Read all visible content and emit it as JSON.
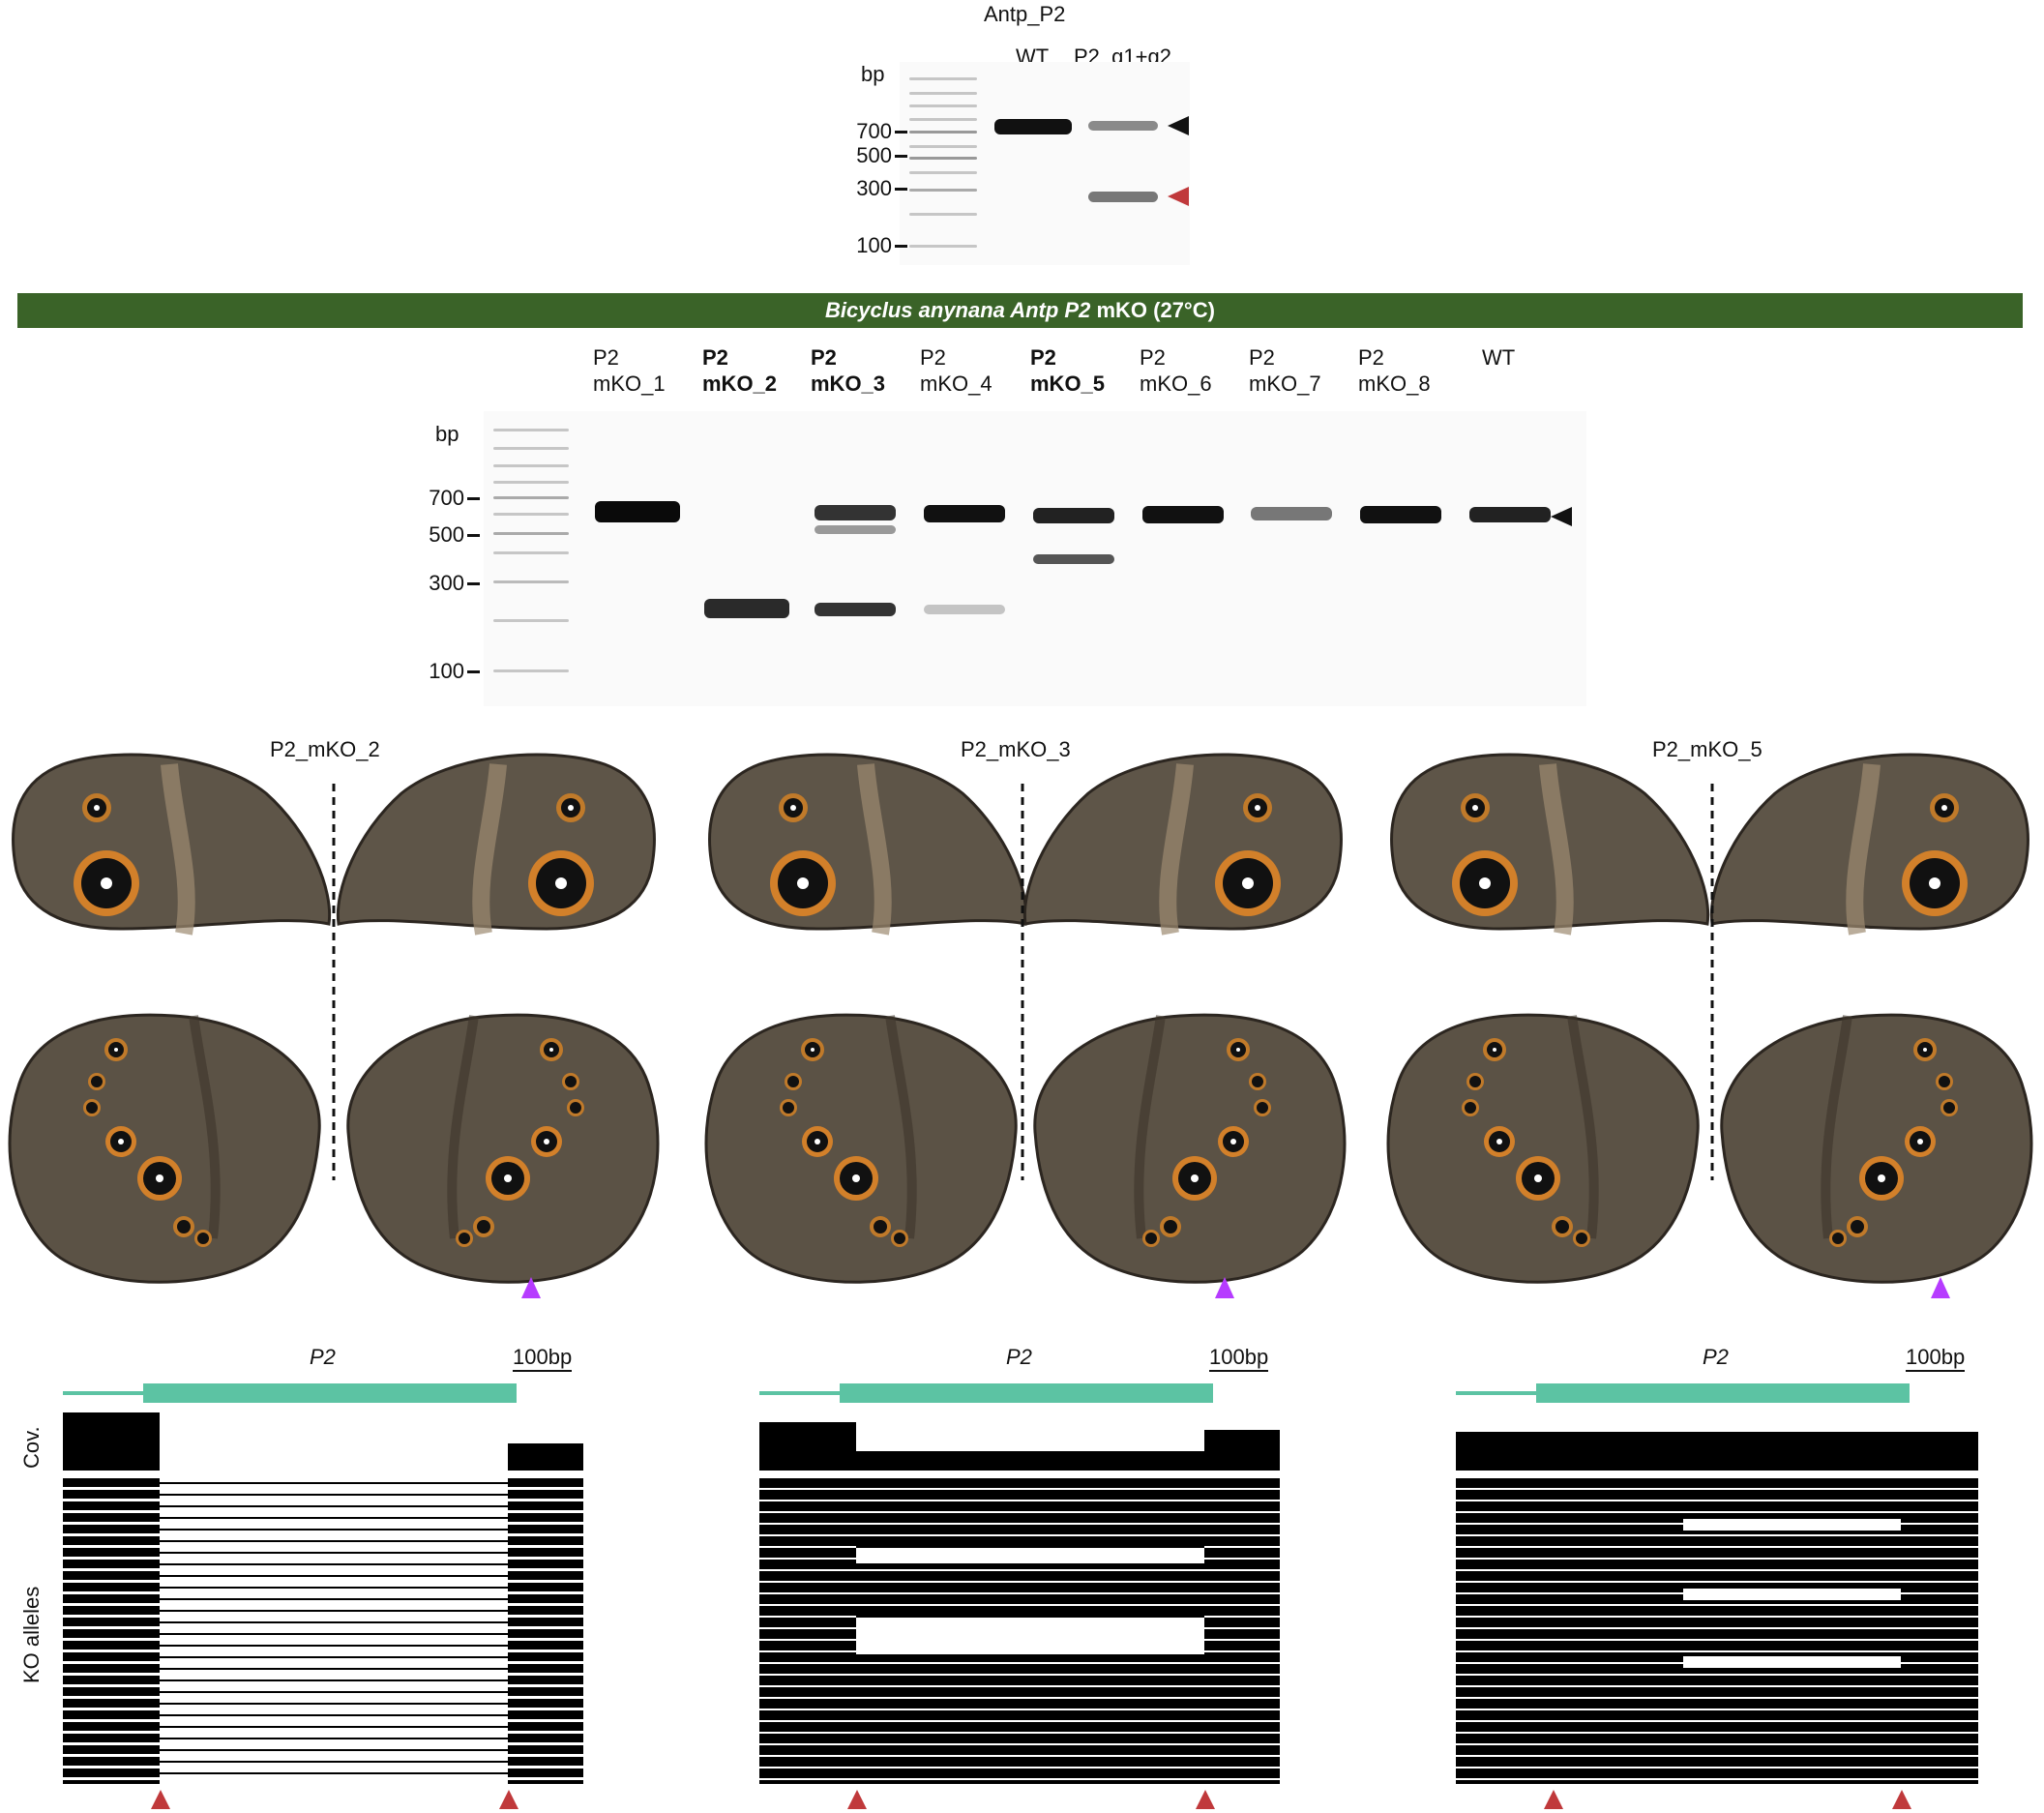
{
  "gel1": {
    "title": "Antp_P2",
    "unit": "bp",
    "lanes": [
      "WT",
      "P2_g1+g2"
    ],
    "markers": [
      "700",
      "500",
      "300",
      "100"
    ]
  },
  "banner": {
    "species": "Bicyclus anynana",
    "gene": " Antp",
    "p2": " P2",
    "rest": " mKO (27°C)"
  },
  "gel2": {
    "unit": "bp",
    "markers": [
      "700",
      "500",
      "300",
      "100"
    ],
    "lanes": [
      {
        "l1": "P2",
        "l2": "mKO_1",
        "bold": false
      },
      {
        "l1": "P2",
        "l2": "mKO_2",
        "bold": true
      },
      {
        "l1": "P2",
        "l2": "mKO_3",
        "bold": true
      },
      {
        "l1": "P2",
        "l2": "mKO_4",
        "bold": false
      },
      {
        "l1": "P2",
        "l2": "mKO_5",
        "bold": true
      },
      {
        "l1": "P2",
        "l2": "mKO_6",
        "bold": false
      },
      {
        "l1": "P2",
        "l2": "mKO_7",
        "bold": false
      },
      {
        "l1": "P2",
        "l2": "mKO_8",
        "bold": false
      },
      {
        "l1": "WT",
        "l2": "",
        "bold": false
      }
    ]
  },
  "butterflies": [
    "P2_mKO_2",
    "P2_mKO_3",
    "P2_mKO_5"
  ],
  "tracks": [
    {
      "gene": "P2",
      "scale": "100bp",
      "cov": "Cov.",
      "alleles": "KO alleles"
    },
    {
      "gene": "P2",
      "scale": "100bp"
    },
    {
      "gene": "P2",
      "scale": "100bp"
    }
  ],
  "colors": {
    "banner": "#3a6328",
    "exon": "#5cc3a3",
    "red_arrow": "#c0393b",
    "purple_arrow": "#b63bff"
  }
}
